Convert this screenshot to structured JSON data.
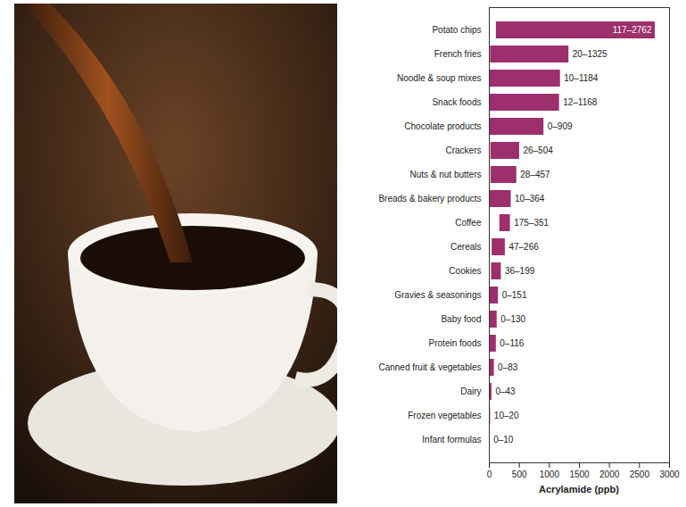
{
  "chart_data": {
    "type": "bar",
    "orientation": "horizontal",
    "xlabel": "Acrylamide (ppb)",
    "categories": [
      "Potato chips",
      "French fries",
      "Noodle & soup mixes",
      "Snack foods",
      "Chocolate products",
      "Crackers",
      "Nuts & nut butters",
      "Breads & bakery products",
      "Coffee",
      "Cereals",
      "Cookies",
      "Gravies & seasonings",
      "Baby food",
      "Protein foods",
      "Canned fruit & vegetables",
      "Dairy",
      "Frozen vegetables",
      "Infant formulas"
    ],
    "values": [
      [
        117,
        2762
      ],
      [
        20,
        1325
      ],
      [
        10,
        1184
      ],
      [
        12,
        1168
      ],
      [
        0,
        909
      ],
      [
        26,
        504
      ],
      [
        28,
        457
      ],
      [
        10,
        364
      ],
      [
        175,
        351
      ],
      [
        47,
        266
      ],
      [
        36,
        199
      ],
      [
        0,
        151
      ],
      [
        0,
        130
      ],
      [
        0,
        116
      ],
      [
        0,
        83
      ],
      [
        0,
        43
      ],
      [
        10,
        20
      ],
      [
        0,
        10
      ]
    ],
    "value_labels": [
      "117–2762",
      "20–1325",
      "10–1184",
      "12–1168",
      "0–909",
      "26–504",
      "28–457",
      "10–364",
      "175–351",
      "47–266",
      "36–199",
      "0–151",
      "0–130",
      "0–116",
      "0–83",
      "0–43",
      "10–20",
      "0–10"
    ],
    "color": "#9c2f6c",
    "xlim": [
      0,
      3000
    ],
    "xticks": [
      0,
      500,
      1000,
      1500,
      2000,
      2500,
      3000
    ],
    "grid": false,
    "data_labels": true
  }
}
